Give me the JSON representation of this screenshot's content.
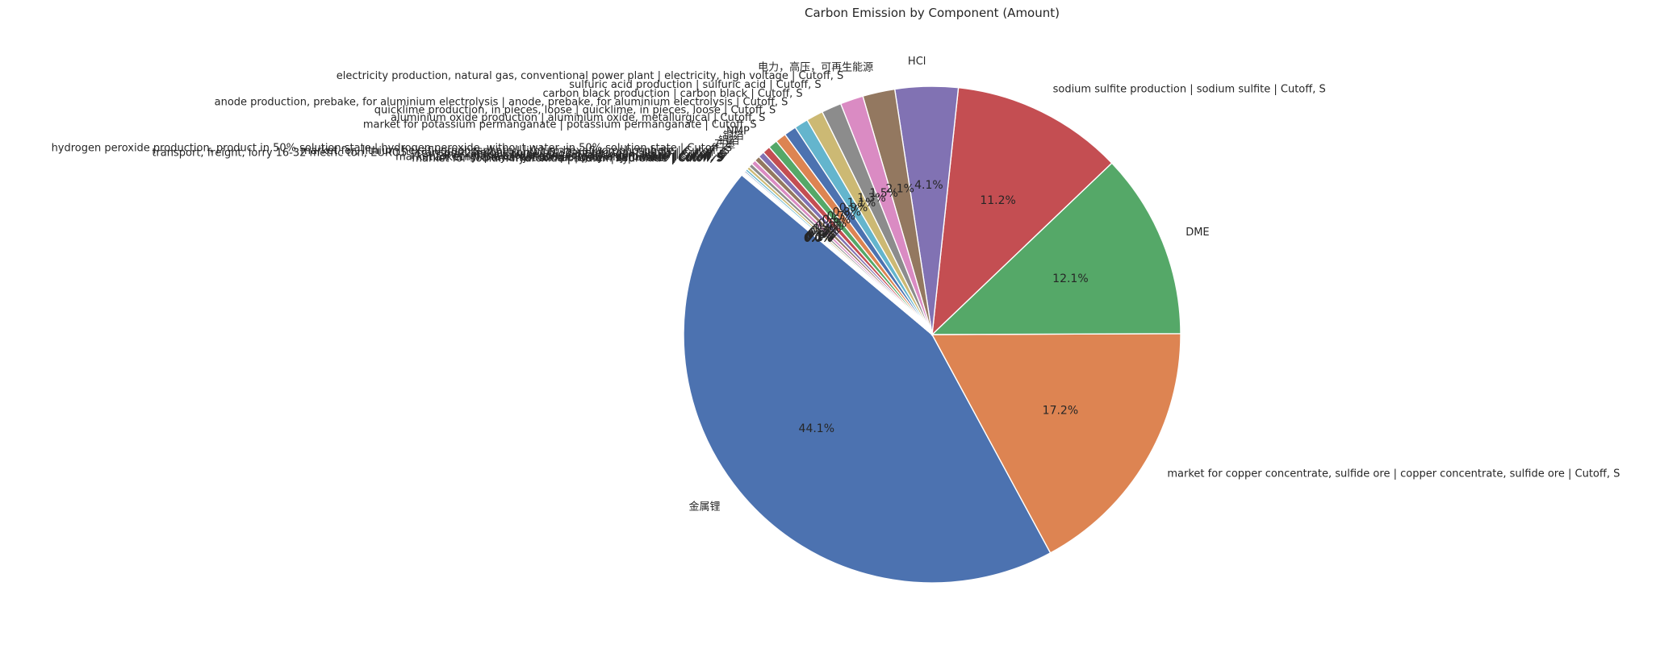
{
  "chart_data": {
    "type": "pie",
    "title": "Carbon Emission by Component (Amount)",
    "start_angle_deg": 140,
    "direction": "counterclockwise",
    "colors": [
      "#4c72b0",
      "#dd8452",
      "#55a868",
      "#c44e52",
      "#8172b3",
      "#937860",
      "#da8bc3",
      "#8c8c8c",
      "#ccb974",
      "#64b5cd"
    ],
    "slices": [
      {
        "label": "金属锂",
        "value": 44.1,
        "pct_label": "44.1%"
      },
      {
        "label": "market for copper concentrate, sulfide ore | copper concentrate, sulfide ore | Cutoff, S",
        "value": 17.2,
        "pct_label": "17.2%"
      },
      {
        "label": "DME",
        "value": 12.1,
        "pct_label": "12.1%"
      },
      {
        "label": "sodium sulfite production | sodium sulfite | Cutoff, S",
        "value": 11.2,
        "pct_label": "11.2%"
      },
      {
        "label": "HCl",
        "value": 4.1,
        "pct_label": "4.1%"
      },
      {
        "label": "电力，高压，可再生能源",
        "value": 2.1,
        "pct_label": "2.1%"
      },
      {
        "label": "electricity production, natural gas, conventional power plant | electricity, high voltage | Cutoff, S",
        "value": 1.5,
        "pct_label": "1.5%"
      },
      {
        "label": "sulfuric acid production | sulfuric acid | Cutoff, S",
        "value": 1.3,
        "pct_label": "1.3%"
      },
      {
        "label": "carbon black production | carbon black | Cutoff, S",
        "value": 1.1,
        "pct_label": "1.1%"
      },
      {
        "label": "anode production, prebake, for aluminium electrolysis | anode, prebake, for aluminium electrolysis | Cutoff, S",
        "value": 0.9,
        "pct_label": "0.9%"
      },
      {
        "label": "quicklime production, in pieces, loose | quicklime, in pieces, loose | Cutoff, S",
        "value": 0.8,
        "pct_label": "0.8%"
      },
      {
        "label": "aluminium oxide production | aluminium oxide, metallurgical | Cutoff, S",
        "value": 0.7,
        "pct_label": "0.7%"
      },
      {
        "label": "market for potassium permanganate | potassium permanganate | Cutoff, S",
        "value": 0.6,
        "pct_label": "0.6%"
      },
      {
        "label": "NMP",
        "value": 0.5,
        "pct_label": "0.5%"
      },
      {
        "label": "铜箔",
        "value": 0.4,
        "pct_label": "0.4%"
      },
      {
        "label": "铝箔",
        "value": 0.35,
        "pct_label": "0.4%"
      },
      {
        "label": "石墨",
        "value": 0.3,
        "pct_label": "0.3%"
      },
      {
        "label": "hydrogen peroxide production, product in 50% solution state | hydrogen peroxide, without water, in 50% solution state | Cutoff, S",
        "value": 0.25,
        "pct_label": "0.3%"
      },
      {
        "label": "market for, lithium hexafluorophosphate | lithium hexafluorophosphate | Cutoff, S",
        "value": 0.2,
        "pct_label": "0.2%"
      },
      {
        "label": "transport, freight, lorry 16-32 metric ton, EURO5 | transport, freight, lorry 16-32 metric ton, EURO5 | Cutoff, S",
        "value": 0.15,
        "pct_label": "0.1%"
      },
      {
        "label": "market for nitrogen, liquid | nitrogen, liquid | Cutoff, S",
        "value": 0.1,
        "pct_label": "0.1%"
      },
      {
        "label": "market for argon, liquid | argon, liquid | Cutoff, S",
        "value": 0.08,
        "pct_label": "0.1%"
      },
      {
        "label": "market for ethylene carbonate | ethylene carbonate | Cutoff, S",
        "value": 0.06,
        "pct_label": "0.1%"
      },
      {
        "label": "market for polyvinylfluoride | polyvinylfluoride | Cutoff, S",
        "value": 0.05,
        "pct_label": "0.0%"
      },
      {
        "label": "market for tap water | tap water | Cutoff, S",
        "value": 0.04,
        "pct_label": "0.0%"
      },
      {
        "label": "market for sodium hydroxide | sodium hydroxide | Cutoff, S",
        "value": 0.03,
        "pct_label": "0.0%"
      }
    ]
  }
}
